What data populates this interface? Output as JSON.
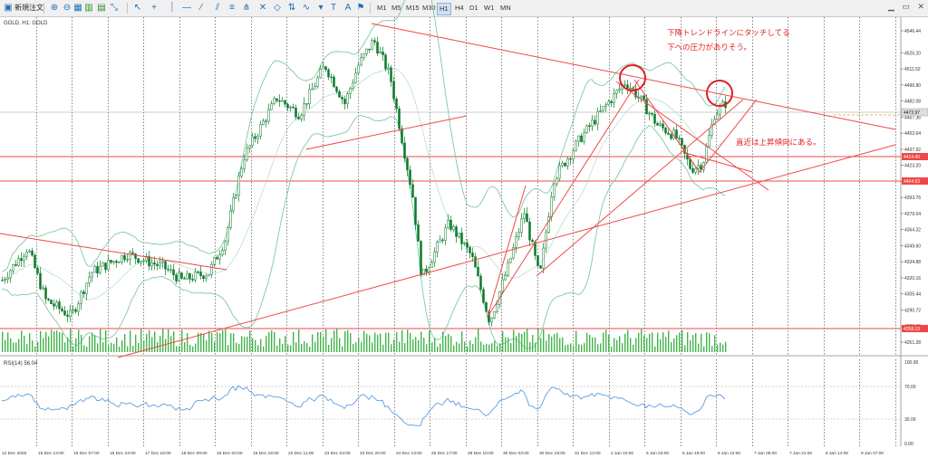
{
  "toolbar": {
    "new_order_label": "新規注文",
    "timeframes": [
      "M1",
      "M5",
      "M15",
      "M30",
      "H1",
      "H4",
      "D1",
      "W1",
      "MN"
    ],
    "active_timeframe": "H1"
  },
  "chart": {
    "symbol_label": "GOLD, H1: GOLD",
    "rsi_label": "RSI(14) 56.04",
    "price_ticks": [
      "4546.44",
      "4526.20",
      "4511.52",
      "4496.80",
      "4482.08",
      "4467.36",
      "4452.64",
      "4437.92",
      "4423.20",
      "4408.48",
      "4393.76",
      "4379.04",
      "4364.32",
      "4349.60",
      "4334.88",
      "4320.16",
      "4305.44",
      "4290.72",
      "4276.00",
      "4261.28"
    ],
    "price_tick_display": [
      "4546.44",
      "4526.20",
      "4511.52",
      "4496.80",
      "4482.08",
      "4467.36",
      "4452.64",
      "4437.92",
      "4423.20",
      "4408.48",
      "4393.76",
      "4379.04",
      "4364.32",
      "4349.60",
      "4334.88",
      "4320.16",
      "4305.44",
      "4290.72",
      "4276.00",
      "4261.28"
    ],
    "hline_labels": [
      "4414.40",
      "4404.53",
      "4258.13"
    ],
    "current_price": "4473.97",
    "rsi_ticks": [
      "100.00",
      "70.00",
      "30.00",
      "0.00"
    ],
    "time_labels": [
      "12 Dec 2025",
      "15 Dec 14:00",
      "16 Dec 07:00",
      "16 Dec 23:00",
      "17 Dec 16:00",
      "18 Dec 09:00",
      "19 Dec 02:00",
      "19 Dec 18:00",
      "22 Dec 11:00",
      "23 Dec 04:00",
      "23 Dec 20:00",
      "24 Dec 13:00",
      "26 Dec 17:00",
      "29 Dec 10:00",
      "30 Dec 03:00",
      "30 Dec 19:00",
      "31 Dec 12:00",
      "2 Jan 10:00",
      "5 Jan 03:00",
      "5 Jan 19:00",
      "6 Jan 12:00",
      "7 Jan 05:00",
      "7 Jan 21:00",
      "8 Jan 14:00",
      "9 Jan 07:00"
    ]
  },
  "annotations": {
    "line1": "下降トレンドラインにタッチしてる",
    "line2": "下への圧力がありそう。",
    "line3": "直近は上昇傾向にある。"
  },
  "colors": {
    "trendline": "#f04848",
    "candle": "#0b7a2a",
    "bollinger": "#7fc8a8",
    "rsi": "#5b9ee0",
    "volume": "#44b44c",
    "annotation_text": "#e02020"
  }
}
